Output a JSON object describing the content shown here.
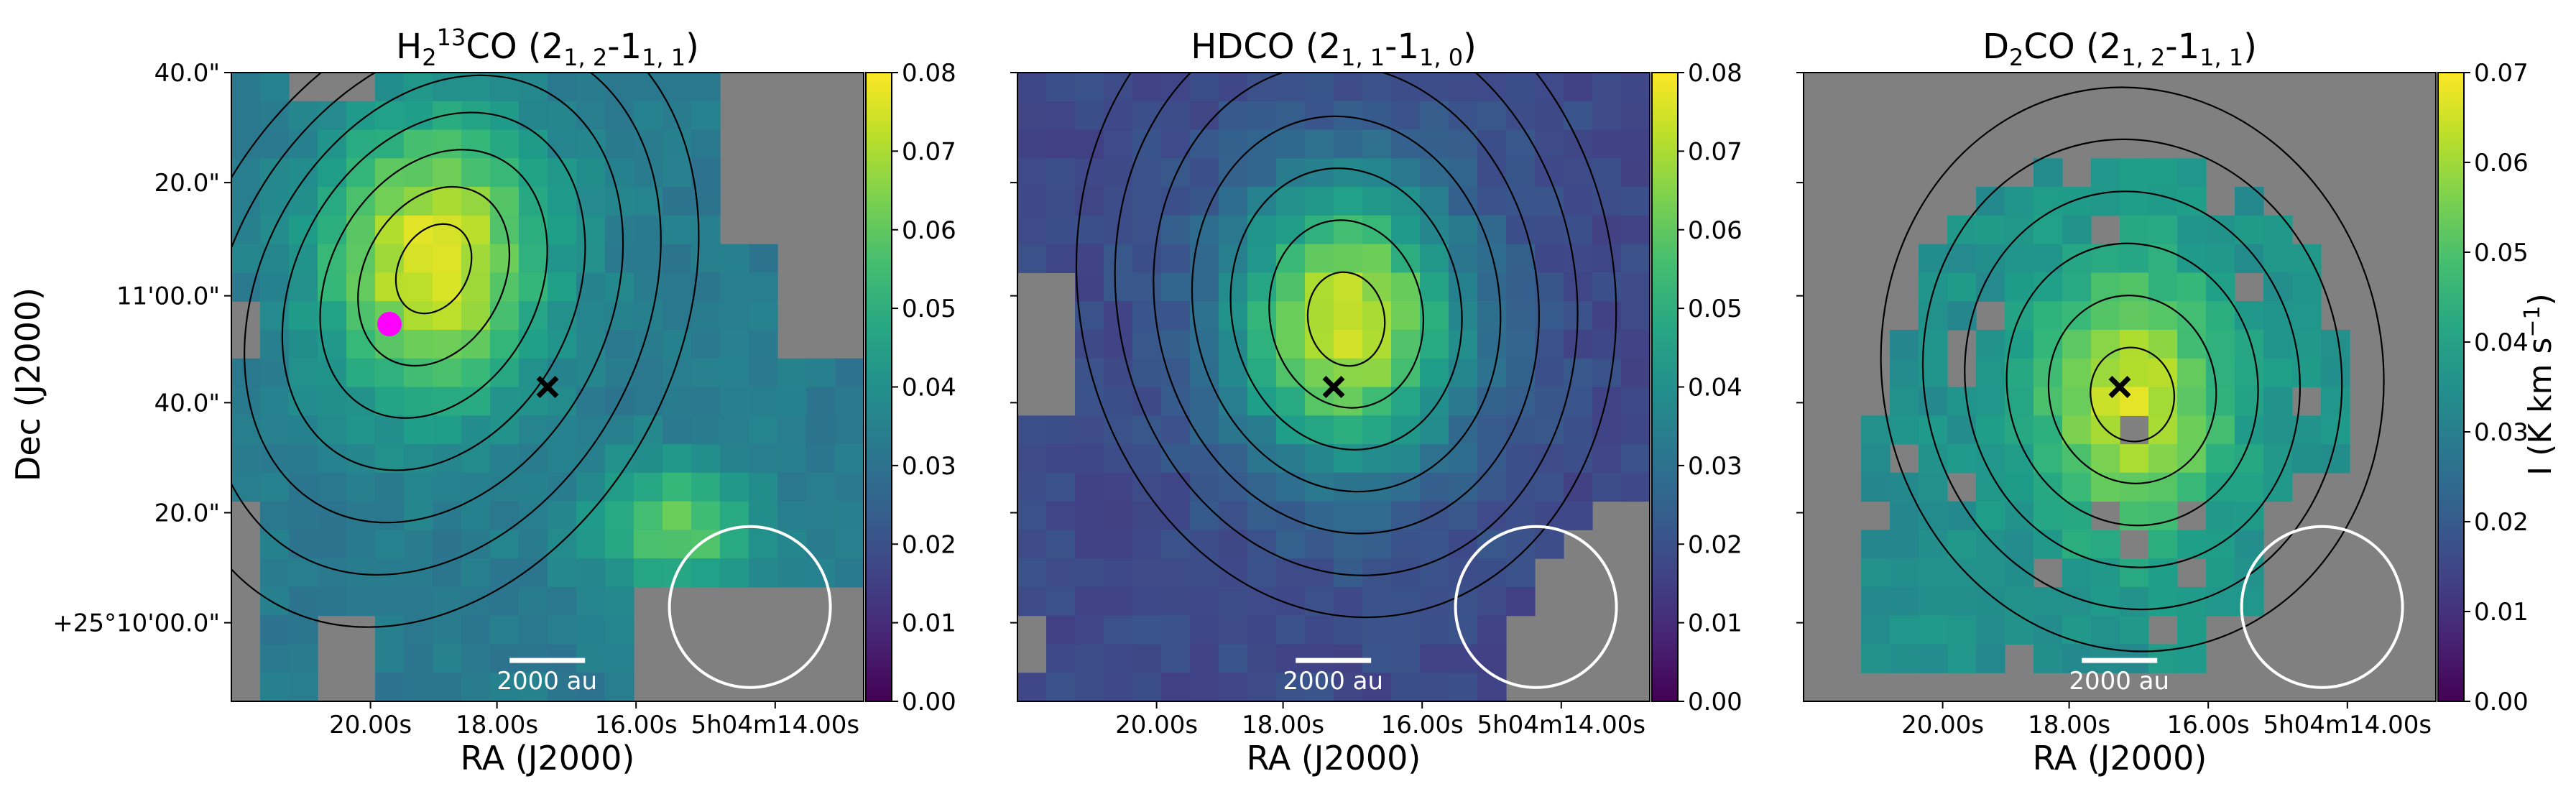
{
  "figure": {
    "ylabel": "Dec (J2000)",
    "colorbar_label_main": "I (K km s",
    "colorbar_label_exp": "−1",
    "colorbar_label_close": ")"
  },
  "chart_data": [
    {
      "type": "heatmap",
      "title_parts": [
        [
          "H",
          "n"
        ],
        [
          "2",
          "sub"
        ],
        [
          "13",
          "sup"
        ],
        [
          "CO (2",
          "n"
        ],
        [
          "1, 2",
          "sub"
        ],
        [
          "-1",
          "n"
        ],
        [
          "1, 1",
          "sub"
        ],
        [
          ")",
          "n"
        ]
      ],
      "xlabel": "RA (J2000)",
      "xticks": [
        "20.00s",
        "18.00s",
        "16.00s",
        "5h04m14.00s"
      ],
      "yticks": [
        "40.0\"",
        "20.0\"",
        "11'00.0\"",
        "40.0\"",
        "20.0\"",
        "+25°10'00.0\""
      ],
      "colorbar": {
        "min": 0.0,
        "max": 0.08,
        "ticks": [
          "0.00",
          "0.01",
          "0.02",
          "0.03",
          "0.04",
          "0.05",
          "0.06",
          "0.07",
          "0.08"
        ]
      },
      "scalebar_label": "2000 au",
      "peak": {
        "x": 0.32,
        "y": 0.3,
        "value": 0.077,
        "sx": 0.17,
        "sy": 0.22
      },
      "secondary": {
        "x": 0.7,
        "y": 0.72,
        "value": 0.062,
        "sx": 0.12,
        "sy": 0.09
      },
      "floor": 0.033,
      "blanked": "left-bottom-edges",
      "contour_levels": 7,
      "protostar_marker": {
        "x": 0.5,
        "y": 0.5
      },
      "magenta_marker": {
        "x": 0.25,
        "y": 0.4
      },
      "beam": {
        "x": 0.82,
        "y": 0.85
      }
    },
    {
      "type": "heatmap",
      "title_parts": [
        [
          "HDCO (2",
          "n"
        ],
        [
          "1, 1",
          "sub"
        ],
        [
          "-1",
          "n"
        ],
        [
          "1, 0",
          "sub"
        ],
        [
          ")",
          "n"
        ]
      ],
      "xlabel": "RA (J2000)",
      "xticks": [
        "20.00s",
        "18.00s",
        "16.00s",
        "5h04m14.00s"
      ],
      "yticks": [],
      "colorbar": {
        "min": 0.0,
        "max": 0.08,
        "ticks": [
          "0.00",
          "0.01",
          "0.02",
          "0.03",
          "0.04",
          "0.05",
          "0.06",
          "0.07",
          "0.08"
        ]
      },
      "scalebar_label": "2000 au",
      "peak": {
        "x": 0.52,
        "y": 0.4,
        "value": 0.075,
        "sx": 0.18,
        "sy": 0.22
      },
      "secondary": null,
      "floor": 0.018,
      "blanked": "left-edge",
      "contour_levels": 7,
      "protostar_marker": {
        "x": 0.5,
        "y": 0.5
      },
      "magenta_marker": null,
      "beam": {
        "x": 0.82,
        "y": 0.85
      }
    },
    {
      "type": "heatmap",
      "title_parts": [
        [
          "D",
          "n"
        ],
        [
          "2",
          "sub"
        ],
        [
          "CO (2",
          "n"
        ],
        [
          "1, 2",
          "sub"
        ],
        [
          "-1",
          "n"
        ],
        [
          "1, 1",
          "sub"
        ],
        [
          ")",
          "n"
        ]
      ],
      "xlabel": "RA (J2000)",
      "xticks": [
        "20.00s",
        "18.00s",
        "16.00s",
        "5h04m14.00s"
      ],
      "yticks": [],
      "colorbar": {
        "min": 0.0,
        "max": 0.07,
        "ticks": [
          "0.00",
          "0.01",
          "0.02",
          "0.03",
          "0.04",
          "0.05",
          "0.06",
          "0.07"
        ]
      },
      "scalebar_label": "2000 au",
      "peak": {
        "x": 0.52,
        "y": 0.52,
        "value": 0.066,
        "sx": 0.14,
        "sy": 0.2
      },
      "secondary": null,
      "floor": 0.035,
      "blanked": "sparse-d2co",
      "contour_levels": 6,
      "protostar_marker": {
        "x": 0.5,
        "y": 0.5
      },
      "magenta_marker": null,
      "beam": {
        "x": 0.82,
        "y": 0.85
      }
    }
  ]
}
